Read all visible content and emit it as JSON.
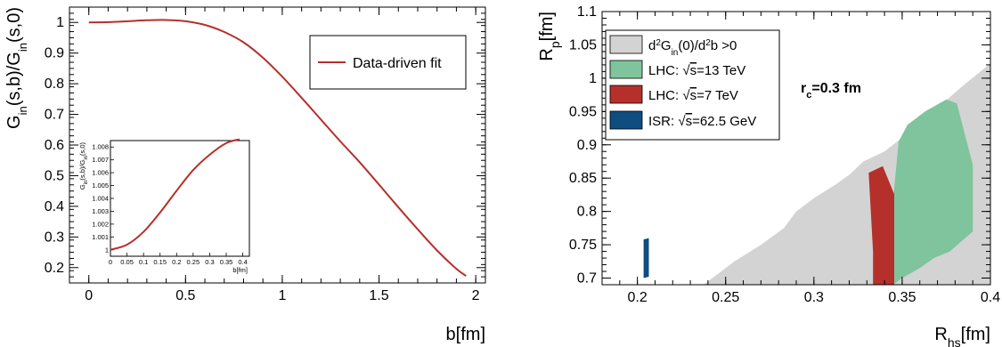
{
  "chart_data": [
    {
      "type": "line",
      "xlabel": "b[fm]",
      "ylabel": "G_in(s,b)/G_in(s,0)",
      "xlim": [
        -0.1,
        2.05
      ],
      "ylim": [
        0.15,
        1.05
      ],
      "xticks": [
        "0",
        "0.5",
        "1",
        "1.5",
        "2"
      ],
      "yticks": [
        "0.2",
        "0.3",
        "0.4",
        "0.5",
        "0.6",
        "0.7",
        "0.8",
        "0.9",
        "1"
      ],
      "legend": {
        "position": "top-right",
        "entries": [
          "Data-driven fit"
        ]
      },
      "series": [
        {
          "name": "Data-driven fit",
          "color": "#b5302a",
          "x": [
            0,
            0.1,
            0.2,
            0.3,
            0.4,
            0.5,
            0.6,
            0.7,
            0.8,
            0.9,
            1.0,
            1.1,
            1.2,
            1.3,
            1.4,
            1.5,
            1.6,
            1.7,
            1.8,
            1.9,
            1.95
          ],
          "y": [
            1.0,
            1.001,
            1.004,
            1.007,
            1.008,
            1.004,
            0.992,
            0.969,
            0.935,
            0.885,
            0.823,
            0.754,
            0.683,
            0.612,
            0.544,
            0.471,
            0.397,
            0.325,
            0.256,
            0.196,
            0.173
          ]
        }
      ],
      "inset": {
        "type": "line",
        "xlabel": "b[fm]",
        "ylabel": "G_in(s,b)/G_in(s,0)",
        "xlim": [
          0,
          0.42
        ],
        "ylim": [
          0.9995,
          1.0085
        ],
        "xticks": [
          "0",
          "0.05",
          "0.1",
          "0.15",
          "0.2",
          "0.25",
          "0.3",
          "0.35",
          "0.4"
        ],
        "yticks": [
          "1",
          "1.001",
          "1.002",
          "1.003",
          "1.004",
          "1.005",
          "1.006",
          "1.007",
          "1.008"
        ],
        "series": [
          {
            "color": "#b5302a",
            "x": [
              0,
              0.05,
              0.1,
              0.15,
              0.2,
              0.25,
              0.3,
              0.35,
              0.39
            ],
            "y": [
              1.0,
              1.0004,
              1.0014,
              1.0029,
              1.0046,
              1.0062,
              1.0074,
              1.0083,
              1.0086
            ]
          }
        ]
      }
    },
    {
      "type": "area",
      "xlabel": "R_hs[fm]",
      "ylabel": "R_p[fm]",
      "xlim": [
        0.18,
        0.4
      ],
      "ylim": [
        0.69,
        1.1
      ],
      "xticks": [
        "0.2",
        "0.25",
        "0.3",
        "0.35",
        "0.4"
      ],
      "yticks": [
        "0.7",
        "0.75",
        "0.8",
        "0.85",
        "0.9",
        "0.95",
        "1",
        "1.05",
        "1.1"
      ],
      "annotation": "r_c=0.3 fm",
      "legend": {
        "position": "top-left",
        "entries": [
          {
            "label": "d²G_in(0)/d²b >0",
            "color": "#d3d3d3"
          },
          {
            "label": "LHC: √s=13 TeV",
            "color": "#7fc49c"
          },
          {
            "label": "LHC: √s=7 TeV",
            "color": "#b5302a"
          },
          {
            "label": "ISR: √s=62.5 GeV",
            "color": "#0f4d80"
          }
        ]
      },
      "regions": [
        {
          "name": "d²G_in(0)/d²b >0",
          "color": "#d3d3d3",
          "x": [
            0.2375,
            0.255,
            0.27,
            0.283,
            0.29,
            0.3,
            0.312,
            0.32,
            0.328,
            0.34,
            0.352,
            0.363,
            0.372,
            0.385,
            0.4,
            0.4
          ],
          "y": [
            0.69,
            0.725,
            0.75,
            0.775,
            0.8,
            0.82,
            0.84,
            0.855,
            0.875,
            0.89,
            0.915,
            0.94,
            0.96,
            0.99,
            1.022,
            0.69
          ]
        },
        {
          "name": "LHC: √s=13 TeV",
          "color": "#7fc49c",
          "x": [
            0.345,
            0.348,
            0.353,
            0.363,
            0.375,
            0.381,
            0.39,
            0.39,
            0.377,
            0.368,
            0.36,
            0.35,
            0.345
          ],
          "y": [
            0.82,
            0.905,
            0.93,
            0.95,
            0.968,
            0.962,
            0.87,
            0.77,
            0.74,
            0.73,
            0.715,
            0.7,
            0.69
          ]
        },
        {
          "name": "LHC: √s=7 TeV",
          "color": "#b5302a",
          "x": [
            0.331,
            0.339,
            0.3455,
            0.3455,
            0.3335,
            0.3335,
            0.331
          ],
          "y": [
            0.858,
            0.868,
            0.826,
            0.69,
            0.69,
            0.74,
            0.858
          ]
        },
        {
          "name": "ISR: √s=62.5 GeV",
          "color": "#0f4d80",
          "x": [
            0.2035,
            0.2065,
            0.2065,
            0.2035
          ],
          "y": [
            0.758,
            0.76,
            0.702,
            0.7
          ]
        }
      ]
    }
  ]
}
